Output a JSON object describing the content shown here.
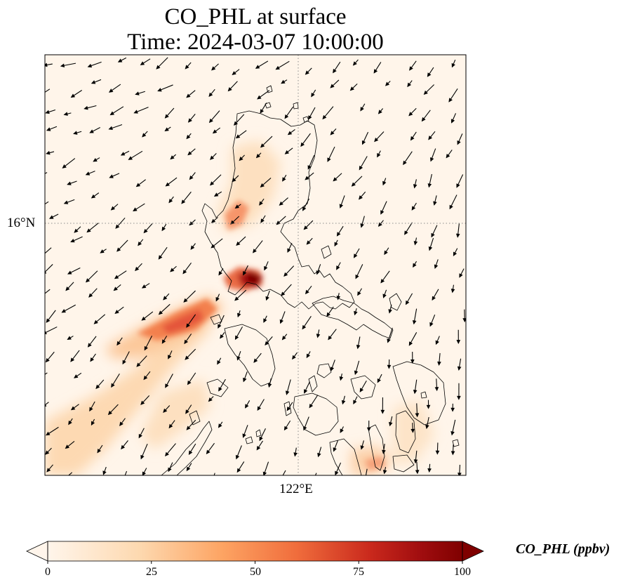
{
  "title": {
    "line1": "CO_PHL at surface",
    "line2": "Time: 2024-03-07 10:00:00"
  },
  "axes": {
    "lat_label": "16°N",
    "lon_label": "122°E"
  },
  "colorbar": {
    "label": "CO_PHL (ppbv)",
    "ticks": [
      "0",
      "25",
      "50",
      "75",
      "100"
    ],
    "min": 0,
    "max": 100,
    "colormap": [
      "#fff5eb",
      "#fdd4a5",
      "#fc8a53",
      "#dc3f24",
      "#a81012",
      "#7f0000"
    ],
    "extend": "both"
  },
  "map": {
    "gridlines": "dotted",
    "coastline_color": "#000000",
    "wind_vectors": true,
    "plumes": [
      {
        "name": "central-luzon-plume",
        "peak_ppbv": 100
      },
      {
        "name": "southwest-plume",
        "peak_ppbv": 65
      },
      {
        "name": "northwest-luzon-plume",
        "peak_ppbv": 45
      },
      {
        "name": "visayas-plume",
        "peak_ppbv": 40
      }
    ]
  }
}
